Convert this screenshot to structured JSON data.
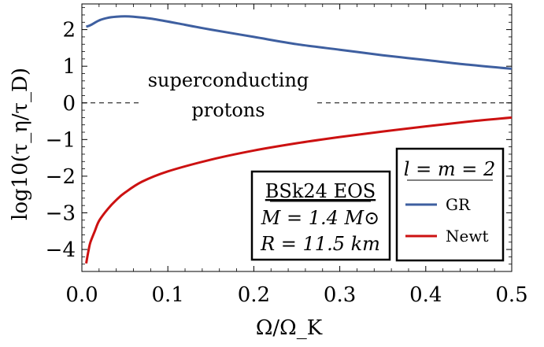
{
  "chart_data": {
    "type": "line",
    "xlabel": "Ω/Ω_K",
    "ylabel": "log10(τ_η/τ_D)",
    "xlim": [
      0,
      0.5
    ],
    "ylim": [
      -4.6,
      2.7
    ],
    "xticks": [
      0.0,
      0.1,
      0.2,
      0.3,
      0.4,
      0.5
    ],
    "xtick_labels": [
      "0.0",
      "0.1",
      "0.2",
      "0.3",
      "0.4",
      "0.5"
    ],
    "yticks": [
      -4,
      -3,
      -2,
      -1,
      0,
      1,
      2
    ],
    "ytick_labels": [
      "−4",
      "−3",
      "−2",
      "−1",
      "0",
      "1",
      "2"
    ],
    "grid": false,
    "reference_line": {
      "y": 0,
      "style": "dashed"
    },
    "annotation": {
      "line1": "superconducting",
      "line2": "protons"
    },
    "eos_box": {
      "line1": "BSk24 EOS",
      "line2": "M = 1.4 M⊙",
      "line3": "R = 11.5 km"
    },
    "legend": {
      "title": "l = m = 2",
      "placement": "bottom-right"
    },
    "series": [
      {
        "name": "GR",
        "color": "#3e5fa0",
        "x": [
          0.005,
          0.01,
          0.02,
          0.03,
          0.04,
          0.05,
          0.06,
          0.08,
          0.1,
          0.12,
          0.15,
          0.2,
          0.25,
          0.3,
          0.35,
          0.4,
          0.45,
          0.5
        ],
        "y": [
          2.08,
          2.12,
          2.25,
          2.32,
          2.35,
          2.36,
          2.35,
          2.3,
          2.22,
          2.13,
          2.0,
          1.8,
          1.6,
          1.45,
          1.3,
          1.17,
          1.04,
          0.93
        ]
      },
      {
        "name": "Newt",
        "color": "#cc1111",
        "x": [
          0.005,
          0.008,
          0.01,
          0.015,
          0.02,
          0.03,
          0.04,
          0.05,
          0.07,
          0.1,
          0.15,
          0.2,
          0.25,
          0.3,
          0.35,
          0.4,
          0.45,
          0.5
        ],
        "y": [
          -4.38,
          -4.0,
          -3.8,
          -3.5,
          -3.22,
          -2.9,
          -2.65,
          -2.45,
          -2.15,
          -1.87,
          -1.55,
          -1.3,
          -1.1,
          -0.93,
          -0.78,
          -0.64,
          -0.51,
          -0.4
        ]
      }
    ]
  }
}
